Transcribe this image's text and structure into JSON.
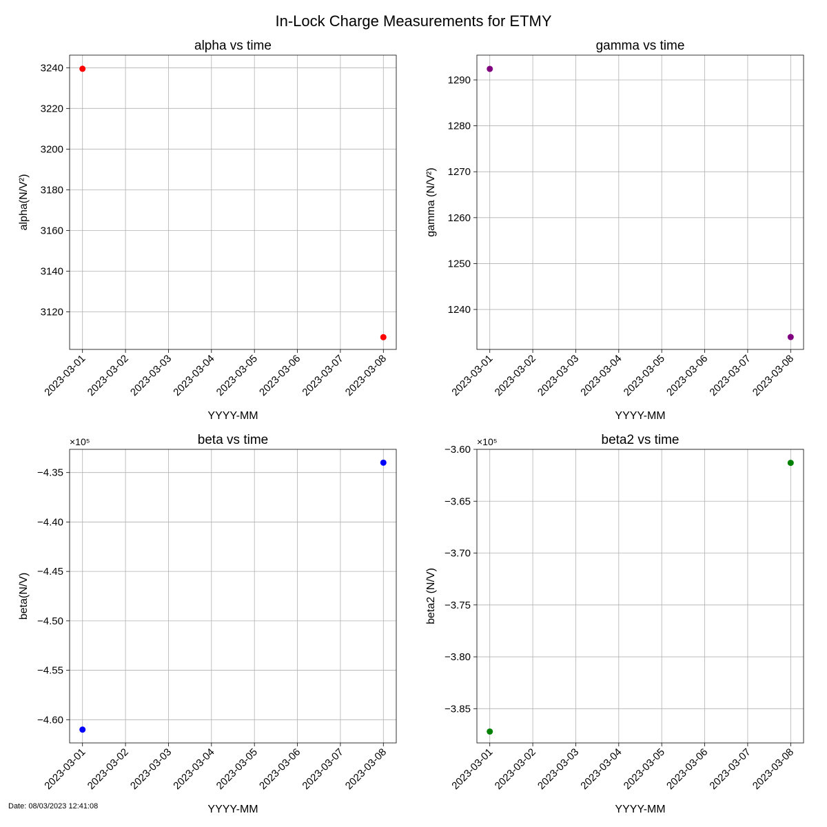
{
  "figure": {
    "suptitle": "In-Lock Charge Measurements for ETMY",
    "footer": "Date: 08/03/2023 12:41:08"
  },
  "chart_data": [
    {
      "type": "scatter",
      "title": "alpha vs time",
      "xlabel": "YYYY-MM",
      "ylabel": "alpha(N/V²)",
      "x": [
        "2023-03-01",
        "2023-03-08"
      ],
      "series": [
        {
          "values": [
            3239.5,
            3107.5
          ],
          "color": "#ff0000"
        }
      ],
      "x_ticks": [
        "2023-03-01",
        "2023-03-02",
        "2023-03-03",
        "2023-03-04",
        "2023-03-05",
        "2023-03-06",
        "2023-03-07",
        "2023-03-08"
      ],
      "xlim": [
        "2023-02-28T16:48",
        "2023-03-08T07:12"
      ],
      "y_ticks": [
        3120,
        3140,
        3160,
        3180,
        3200,
        3220,
        3240
      ],
      "y_tick_labels": [
        "3120",
        "3140",
        "3160",
        "3180",
        "3200",
        "3220",
        "3240"
      ],
      "ylim": [
        3101.5,
        3246.2
      ],
      "scale_label": "",
      "grid": true
    },
    {
      "type": "scatter",
      "title": "gamma vs time",
      "xlabel": "YYYY-MM",
      "ylabel": "gamma (N/V²)",
      "x": [
        "2023-03-01",
        "2023-03-08"
      ],
      "series": [
        {
          "values": [
            1292.4,
            1234.0
          ],
          "color": "#800080"
        }
      ],
      "x_ticks": [
        "2023-03-01",
        "2023-03-02",
        "2023-03-03",
        "2023-03-04",
        "2023-03-05",
        "2023-03-06",
        "2023-03-07",
        "2023-03-08"
      ],
      "xlim": [
        "2023-02-28T16:48",
        "2023-03-08T07:12"
      ],
      "y_ticks": [
        1240,
        1250,
        1260,
        1270,
        1280,
        1290
      ],
      "y_tick_labels": [
        "1240",
        "1250",
        "1260",
        "1270",
        "1280",
        "1290"
      ],
      "ylim": [
        1231.3,
        1295.4
      ],
      "scale_label": "",
      "grid": true
    },
    {
      "type": "scatter",
      "title": "beta vs time",
      "xlabel": "YYYY-MM",
      "ylabel": "beta(N/V)",
      "x": [
        "2023-03-01",
        "2023-03-08"
      ],
      "series": [
        {
          "values": [
            -461000,
            -434000
          ],
          "color": "#0000ff"
        }
      ],
      "x_ticks": [
        "2023-03-01",
        "2023-03-02",
        "2023-03-03",
        "2023-03-04",
        "2023-03-05",
        "2023-03-06",
        "2023-03-07",
        "2023-03-08"
      ],
      "xlim": [
        "2023-02-28T16:48",
        "2023-03-08T07:12"
      ],
      "y_ticks": [
        -460000,
        -455000,
        -450000,
        -445000,
        -440000,
        -435000
      ],
      "y_tick_labels": [
        "−4.60",
        "−4.55",
        "−4.50",
        "−4.45",
        "−4.40",
        "−4.35"
      ],
      "ylim": [
        -462350,
        -432650
      ],
      "scale_label": "×10⁵",
      "grid": true
    },
    {
      "type": "scatter",
      "title": "beta2 vs time",
      "xlabel": "YYYY-MM",
      "ylabel": "beta2 (N/V)",
      "x": [
        "2023-03-01",
        "2023-03-08"
      ],
      "series": [
        {
          "values": [
            -387200,
            -361300
          ],
          "color": "#008000"
        }
      ],
      "x_ticks": [
        "2023-03-01",
        "2023-03-02",
        "2023-03-03",
        "2023-03-04",
        "2023-03-05",
        "2023-03-06",
        "2023-03-07",
        "2023-03-08"
      ],
      "xlim": [
        "2023-02-28T16:48",
        "2023-03-08T07:12"
      ],
      "y_ticks": [
        -385000,
        -380000,
        -375000,
        -370000,
        -365000,
        -360000
      ],
      "y_tick_labels": [
        "−3.85",
        "−3.80",
        "−3.75",
        "−3.70",
        "−3.65",
        "−3.60"
      ],
      "ylim": [
        -388300,
        -360000
      ],
      "scale_label": "×10⁵",
      "grid": true
    }
  ]
}
